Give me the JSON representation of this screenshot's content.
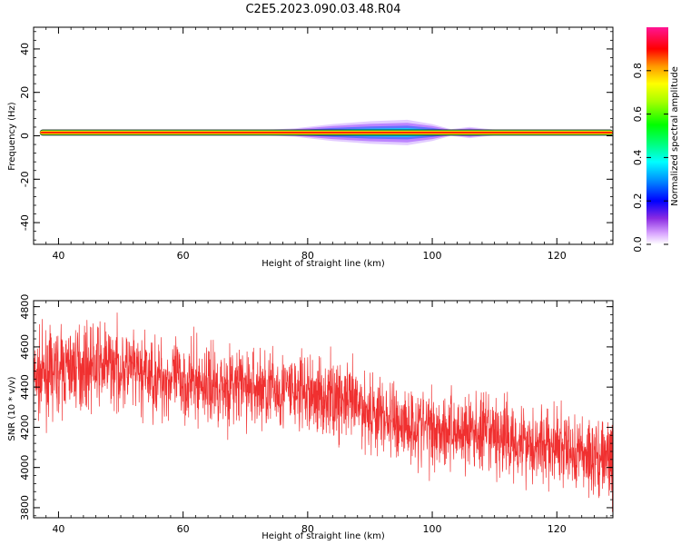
{
  "title": "C2E5.2023.090.03.48.R04",
  "chart_data": [
    {
      "type": "heatmap",
      "xlabel": "Height of straight line (km)",
      "ylabel": "Frequency (Hz)",
      "xlim": [
        36,
        129
      ],
      "ylim": [
        -50,
        50
      ],
      "xticks": [
        40,
        60,
        80,
        100,
        120
      ],
      "yticks": [
        -40,
        -20,
        0,
        20,
        40
      ],
      "ridge": {
        "frequency": 1.5,
        "x_start": 37,
        "x_end": 129
      },
      "spread_region": [
        {
          "x": 72,
          "halfwidth": 0.8
        },
        {
          "x": 78,
          "halfwidth": 1.5
        },
        {
          "x": 84,
          "halfwidth": 3
        },
        {
          "x": 90,
          "halfwidth": 4
        },
        {
          "x": 96,
          "halfwidth": 4.5
        },
        {
          "x": 100,
          "halfwidth": 3
        },
        {
          "x": 103,
          "halfwidth": 1.2
        },
        {
          "x": 106,
          "halfwidth": 2
        },
        {
          "x": 110,
          "halfwidth": 1
        }
      ],
      "colorbar": {
        "label": "Normalized spectral amplitude",
        "range": [
          0,
          1
        ],
        "ticks": [
          0.0,
          0.2,
          0.4,
          0.6,
          0.8
        ],
        "tick_labels": [
          "0.0",
          "0.2",
          "0.4",
          "0.6",
          "0.8"
        ]
      },
      "colors": {
        "ridge_core": "#ff0000",
        "spread": "#9b4dff"
      }
    },
    {
      "type": "line",
      "xlabel": "Height of straight line (km)",
      "ylabel": "SNR (10 * v/v)",
      "xlim": [
        36,
        129
      ],
      "ylim": [
        3750,
        4830
      ],
      "xticks": [
        40,
        60,
        80,
        100,
        120
      ],
      "yticks": [
        3800,
        4000,
        4200,
        4400,
        4600,
        4800
      ],
      "color": "#f03030",
      "trend": [
        {
          "x": 36,
          "y": 4440
        },
        {
          "x": 42,
          "y": 4500
        },
        {
          "x": 48,
          "y": 4510
        },
        {
          "x": 55,
          "y": 4450
        },
        {
          "x": 65,
          "y": 4410
        },
        {
          "x": 75,
          "y": 4390
        },
        {
          "x": 85,
          "y": 4340
        },
        {
          "x": 95,
          "y": 4220
        },
        {
          "x": 105,
          "y": 4180
        },
        {
          "x": 115,
          "y": 4130
        },
        {
          "x": 122,
          "y": 4080
        },
        {
          "x": 129,
          "y": 4040
        }
      ],
      "noise_amplitude": 180,
      "sample_count": 2400
    }
  ]
}
